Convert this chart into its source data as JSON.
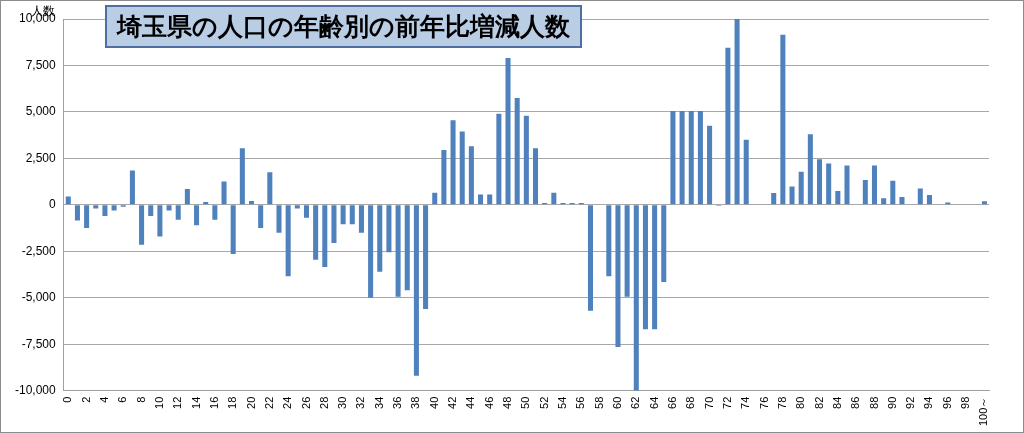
{
  "chart_data": {
    "type": "bar",
    "title": "埼玉県の人口の年齢別の前年比増減人数",
    "ylabel": "人数",
    "categories": [
      "0",
      null,
      "2",
      null,
      "4",
      null,
      "6",
      null,
      "8",
      null,
      "10",
      null,
      "12",
      null,
      "14",
      null,
      "16",
      null,
      "18",
      null,
      "20",
      null,
      "22",
      null,
      "24",
      null,
      "26",
      null,
      "28",
      null,
      "30",
      null,
      "32",
      null,
      "34",
      null,
      "36",
      null,
      "38",
      null,
      "40",
      null,
      "42",
      null,
      "44",
      null,
      "46",
      null,
      "48",
      null,
      "50",
      null,
      "52",
      null,
      "54",
      null,
      "56",
      null,
      "58",
      null,
      "60",
      null,
      "62",
      null,
      "64",
      null,
      "66",
      null,
      "68",
      null,
      "70",
      null,
      "72",
      null,
      "74",
      null,
      "76",
      null,
      "78",
      null,
      "80",
      null,
      "82",
      null,
      "84",
      null,
      "86",
      null,
      "88",
      null,
      "90",
      null,
      "92",
      null,
      "94",
      null,
      "96",
      null,
      "98",
      null,
      "100～"
    ],
    "values": [
      450,
      -850,
      -1250,
      -200,
      -600,
      -300,
      -100,
      1850,
      -2150,
      -600,
      -1700,
      -300,
      -800,
      850,
      -1100,
      150,
      -800,
      1250,
      -2650,
      3050,
      200,
      -1250,
      1750,
      -1500,
      -3850,
      -200,
      -700,
      -2950,
      -3350,
      -2050,
      -1050,
      -1050,
      -1500,
      -5000,
      -3600,
      -2550,
      -4950,
      -4600,
      -9200,
      -5600,
      650,
      2950,
      4550,
      3950,
      3150,
      550,
      550,
      4900,
      7900,
      5750,
      4800,
      3050,
      100,
      650,
      100,
      100,
      100,
      -5700,
      0,
      -3850,
      -7650,
      -4950,
      -10000,
      -6700,
      -6700,
      -4150,
      5050,
      5050,
      5050,
      5050,
      4250,
      -50,
      8450,
      10000,
      3500,
      null,
      null,
      630,
      9150,
      980,
      1780,
      3800,
      2450,
      2220,
      750,
      2120,
      0,
      1340,
      2120,
      360,
      1290,
      420,
      0,
      880,
      530,
      0,
      130,
      null,
      null,
      null,
      190
    ],
    "color": "#4f81bd",
    "ylim": [
      -10000,
      10000
    ],
    "yticks": [
      {
        "value": -10000,
        "label": "-10,000"
      },
      {
        "value": -7500,
        "label": "-7,500"
      },
      {
        "value": -5000,
        "label": "-5,000"
      },
      {
        "value": -2500,
        "label": "-2,500"
      },
      0,
      {
        "value": 2500,
        "label": "2,500"
      },
      {
        "value": 5000,
        "label": "5,000"
      },
      {
        "value": 7500,
        "label": "7,500"
      },
      {
        "value": 10000,
        "label": "10,000"
      }
    ],
    "grid": "y"
  }
}
